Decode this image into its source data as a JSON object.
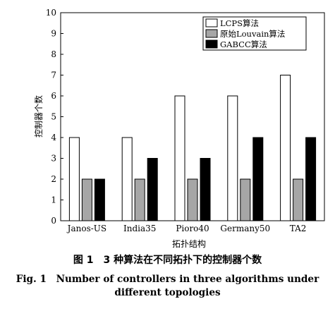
{
  "chart_data": {
    "type": "bar",
    "categories": [
      "Janos-US",
      "India35",
      "Pioro40",
      "Germany50",
      "TA2"
    ],
    "series": [
      {
        "name": "LCPS算法",
        "color": "#ffffff",
        "values": [
          4,
          4,
          6,
          6,
          7
        ]
      },
      {
        "name": "原始Louvain算法",
        "color": "#a6a6a6",
        "values": [
          2,
          2,
          2,
          2,
          2
        ]
      },
      {
        "name": "GABCC算法",
        "color": "#000000",
        "values": [
          2,
          3,
          3,
          4,
          4
        ]
      }
    ],
    "xlabel": "拓扑结构",
    "ylabel": "控制器个数",
    "ylim": [
      0,
      10
    ],
    "yticks": [
      "0",
      "1",
      "2",
      "3",
      "4",
      "5",
      "6",
      "7",
      "8",
      "9",
      "10"
    ],
    "grid": false,
    "legend_position": "top-right"
  },
  "caption": {
    "cn": "图 1　3 种算法在不同拓扑下的控制器个数",
    "en_line1": "Fig. 1　Number of controllers in three algorithms under",
    "en_line2": "different topologies"
  }
}
